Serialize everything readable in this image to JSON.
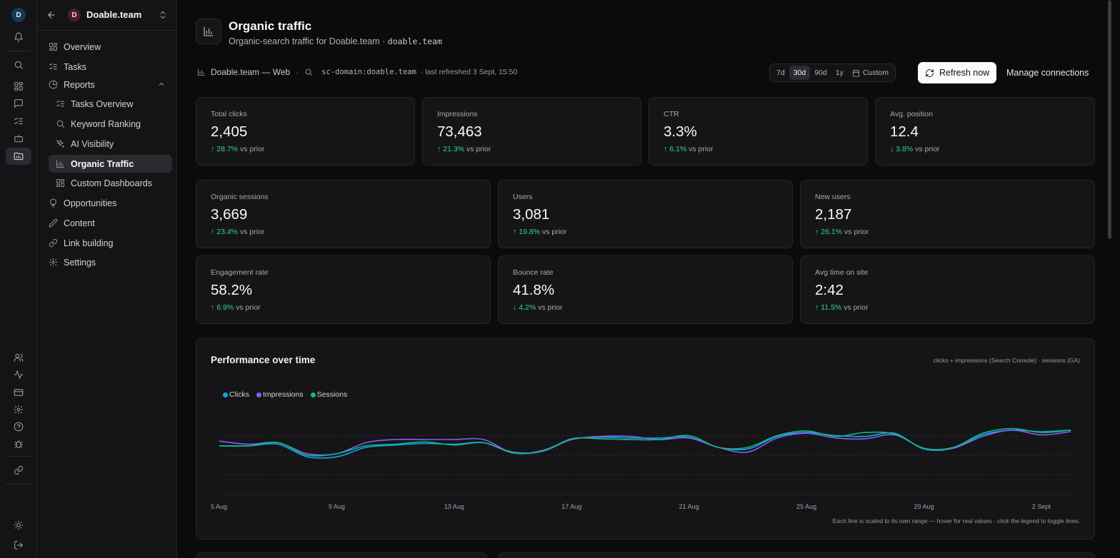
{
  "workspace": {
    "name": "Doable.team",
    "avatar_letter": "D",
    "user_avatar_letter": "D"
  },
  "rail": {
    "icons": [
      "bell-icon",
      "search-icon",
      "grid-icon",
      "chat-icon",
      "tasks-icon",
      "bot-icon",
      "folder-chart-icon",
      "users-icon",
      "activity-icon",
      "card-icon",
      "settings-icon",
      "help-icon",
      "bug-icon",
      "link-icon",
      "sun-icon",
      "logout-icon"
    ],
    "active": "folder-chart-icon"
  },
  "sidebar": {
    "items": [
      {
        "label": "Overview",
        "icon": "grid-icon"
      },
      {
        "label": "Tasks",
        "icon": "tasks-icon"
      },
      {
        "label": "Reports",
        "icon": "pie-icon",
        "expanded": true
      },
      {
        "label": "Tasks Overview",
        "icon": "tasks-icon",
        "sub": true
      },
      {
        "label": "Keyword Ranking",
        "icon": "search-icon",
        "sub": true
      },
      {
        "label": "AI Visibility",
        "icon": "sparkles-icon",
        "sub": true
      },
      {
        "label": "Organic Traffic",
        "icon": "bar-chart-icon",
        "sub": true,
        "active": true
      },
      {
        "label": "Custom Dashboards",
        "icon": "grid-icon",
        "sub": true
      },
      {
        "label": "Opportunities",
        "icon": "lightbulb-icon"
      },
      {
        "label": "Content",
        "icon": "pen-icon"
      },
      {
        "label": "Link building",
        "icon": "link-icon"
      },
      {
        "label": "Settings",
        "icon": "settings-icon"
      }
    ]
  },
  "header": {
    "title": "Organic traffic",
    "subtitle_prefix": "Organic-search traffic for Doable.team · ",
    "subtitle_domain": "doable.team"
  },
  "context": {
    "site": "Doable.team — Web",
    "separator": "·",
    "property": "sc-domain:doable.team",
    "refreshed": "· last refreshed 3 Sept, 15:50"
  },
  "toolbar": {
    "ranges": [
      "7d",
      "30d",
      "90d",
      "1y"
    ],
    "selected_range": "30d",
    "custom_label": "Custom",
    "refresh_label": "Refresh now",
    "manage_label": "Manage connections"
  },
  "kpis_row1": [
    {
      "label": "Total clicks",
      "value": "2,405",
      "direction": "up",
      "delta": "28.7%",
      "suffix": "vs prior"
    },
    {
      "label": "Impressions",
      "value": "73,463",
      "direction": "up",
      "delta": "21.3%",
      "suffix": "vs prior"
    },
    {
      "label": "CTR",
      "value": "3.3%",
      "direction": "up",
      "delta": "6.1%",
      "suffix": "vs prior"
    },
    {
      "label": "Avg. position",
      "value": "12.4",
      "direction": "down",
      "delta": "3.8%",
      "suffix": "vs prior"
    }
  ],
  "kpis_row2": [
    {
      "label": "Organic sessions",
      "value": "3,669",
      "direction": "up",
      "delta": "23.4%",
      "suffix": "vs prior"
    },
    {
      "label": "Users",
      "value": "3,081",
      "direction": "up",
      "delta": "19.8%",
      "suffix": "vs prior"
    },
    {
      "label": "New users",
      "value": "2,187",
      "direction": "up",
      "delta": "26.1%",
      "suffix": "vs prior"
    }
  ],
  "kpis_row3": [
    {
      "label": "Engagement rate",
      "value": "58.2%",
      "direction": "up",
      "delta": "6.9%",
      "suffix": "vs prior"
    },
    {
      "label": "Bounce rate",
      "value": "41.8%",
      "direction": "down",
      "delta": "4.2%",
      "suffix": "vs prior"
    },
    {
      "label": "Avg time on site",
      "value": "2:42",
      "direction": "up",
      "delta": "11.5%",
      "suffix": "vs prior"
    }
  ],
  "chart": {
    "title": "Performance over time",
    "note": "clicks + impressions (Search Console) · sessions (GA)",
    "footnote": "Each line is scaled to its own range — hover for real values · click the legend to toggle lines."
  },
  "chart_data": {
    "type": "line",
    "x": [
      "5 Aug",
      "6 Aug",
      "7 Aug",
      "8 Aug",
      "9 Aug",
      "10 Aug",
      "11 Aug",
      "12 Aug",
      "13 Aug",
      "14 Aug",
      "15 Aug",
      "16 Aug",
      "17 Aug",
      "18 Aug",
      "19 Aug",
      "20 Aug",
      "21 Aug",
      "22 Aug",
      "23 Aug",
      "24 Aug",
      "25 Aug",
      "26 Aug",
      "27 Aug",
      "28 Aug",
      "29 Aug",
      "30 Aug",
      "31 Aug",
      "1 Sept",
      "2 Sept",
      "3 Sept"
    ],
    "x_tick_labels": [
      "5 Aug",
      "9 Aug",
      "13 Aug",
      "17 Aug",
      "21 Aug",
      "25 Aug",
      "29 Aug",
      "2 Sept"
    ],
    "y_scale": "normalized per series (each line scaled to its own range)",
    "ylim": [
      0,
      1
    ],
    "grid": true,
    "legend_position": "top-left",
    "series": [
      {
        "name": "Clicks",
        "color": "#0ea5e9",
        "values": [
          0.62,
          0.62,
          0.64,
          0.48,
          0.48,
          0.6,
          0.63,
          0.65,
          0.64,
          0.66,
          0.54,
          0.55,
          0.7,
          0.73,
          0.72,
          0.72,
          0.73,
          0.6,
          0.58,
          0.74,
          0.79,
          0.75,
          0.74,
          0.78,
          0.58,
          0.59,
          0.76,
          0.82,
          0.8,
          0.82
        ]
      },
      {
        "name": "Impressions",
        "color": "#8b5cf6",
        "values": [
          0.68,
          0.64,
          0.66,
          0.52,
          0.52,
          0.66,
          0.7,
          0.7,
          0.7,
          0.7,
          0.53,
          0.56,
          0.7,
          0.74,
          0.74,
          0.7,
          0.72,
          0.6,
          0.54,
          0.72,
          0.78,
          0.72,
          0.71,
          0.76,
          0.59,
          0.59,
          0.74,
          0.82,
          0.76,
          0.8
        ]
      },
      {
        "name": "Sessions",
        "color": "#10b981",
        "values": [
          0.62,
          0.62,
          0.66,
          0.5,
          0.52,
          0.62,
          0.64,
          0.67,
          0.63,
          0.66,
          0.53,
          0.55,
          0.71,
          0.71,
          0.7,
          0.7,
          0.75,
          0.6,
          0.6,
          0.75,
          0.81,
          0.74,
          0.79,
          0.77,
          0.59,
          0.6,
          0.78,
          0.84,
          0.79,
          0.82
        ]
      }
    ]
  }
}
